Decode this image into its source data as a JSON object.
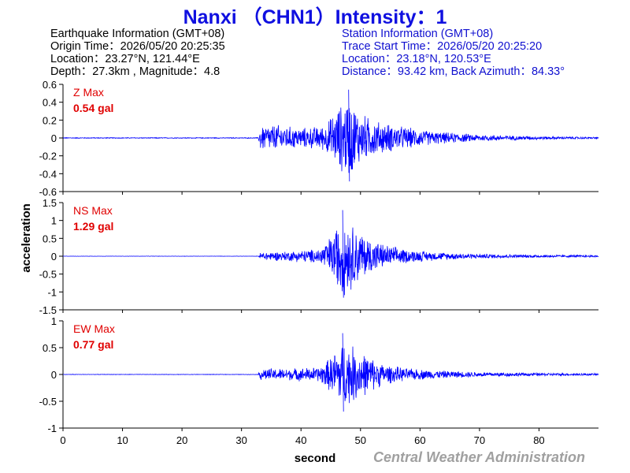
{
  "title": "Nanxi （CHN1）Intensity：1",
  "earthquake_info": {
    "heading": "Earthquake Information  (GMT+08)",
    "origin_time": "Origin Time：2026/05/20 20:25:35",
    "location": "Location：23.27°N, 121.44°E",
    "depth_magnitude": "Depth：27.3km , Magnitude：4.8"
  },
  "station_info": {
    "heading": "Station Information  (GMT+08)",
    "trace_start": "Trace Start Time：2026/05/20 20:25:20",
    "location": "Location：23.18°N, 120.53°E",
    "distance": "Distance：93.42 km, Back Azimuth：84.33°"
  },
  "watermark": "Central Weather Administration",
  "colors": {
    "title": "#1010e0",
    "trace": "#0000ff",
    "label": "#e00000",
    "watermark": "#a0a0a0"
  },
  "chart_data": {
    "type": "line",
    "xlabel": "second",
    "ylabel": "acceleration",
    "xlim": [
      0,
      90
    ],
    "x_ticks": [
      0,
      10,
      20,
      30,
      40,
      50,
      60,
      70,
      80
    ],
    "grid": false,
    "series": [
      {
        "name": "Z",
        "label": "Z Max",
        "max_text": "0.54 gal",
        "peak": 0.54,
        "ylim": [
          -0.6,
          0.6
        ],
        "y_ticks": [
          0.6,
          0.4,
          0.2,
          0,
          -0.2,
          -0.4,
          -0.6
        ],
        "y_tick_labels": [
          "0.6",
          "0.4",
          "0.2",
          "0",
          "-0.2",
          "-0.4",
          "-0.6"
        ],
        "envelope": [
          [
            0,
            0.005
          ],
          [
            32.8,
            0.005
          ],
          [
            33.2,
            0.16
          ],
          [
            36,
            0.16
          ],
          [
            40,
            0.12
          ],
          [
            44,
            0.15
          ],
          [
            46,
            0.35
          ],
          [
            48,
            0.5
          ],
          [
            50,
            0.3
          ],
          [
            53,
            0.2
          ],
          [
            57,
            0.14
          ],
          [
            62,
            0.08
          ],
          [
            70,
            0.04
          ],
          [
            80,
            0.02
          ],
          [
            90,
            0.01
          ]
        ]
      },
      {
        "name": "NS",
        "label": "NS Max",
        "max_text": "1.29 gal",
        "peak": 1.29,
        "ylim": [
          -1.5,
          1.5
        ],
        "y_ticks": [
          1.5,
          1,
          0.5,
          0,
          -0.5,
          -1,
          -1.5
        ],
        "y_tick_labels": [
          "1.5",
          "1",
          "0.5",
          "0",
          "-0.5",
          "-1",
          "-1.5"
        ],
        "envelope": [
          [
            0,
            0.004
          ],
          [
            32.8,
            0.004
          ],
          [
            33.2,
            0.12
          ],
          [
            38,
            0.15
          ],
          [
            43,
            0.22
          ],
          [
            45,
            0.6
          ],
          [
            47,
            1.25
          ],
          [
            49,
            0.9
          ],
          [
            51,
            0.6
          ],
          [
            54,
            0.35
          ],
          [
            58,
            0.2
          ],
          [
            63,
            0.12
          ],
          [
            70,
            0.07
          ],
          [
            80,
            0.04
          ],
          [
            90,
            0.03
          ]
        ]
      },
      {
        "name": "EW",
        "label": "EW Max",
        "max_text": "0.77 gal",
        "peak": 0.77,
        "ylim": [
          -1,
          1
        ],
        "y_ticks": [
          1,
          0.5,
          0,
          -0.5,
          -1
        ],
        "y_tick_labels": [
          "1",
          "0.5",
          "0",
          "-0.5",
          "-1"
        ],
        "envelope": [
          [
            0,
            0.004
          ],
          [
            32.8,
            0.004
          ],
          [
            33.2,
            0.12
          ],
          [
            38,
            0.12
          ],
          [
            43,
            0.15
          ],
          [
            45,
            0.35
          ],
          [
            47,
            0.7
          ],
          [
            49,
            0.55
          ],
          [
            51,
            0.4
          ],
          [
            54,
            0.2
          ],
          [
            58,
            0.12
          ],
          [
            63,
            0.08
          ],
          [
            70,
            0.05
          ],
          [
            80,
            0.03
          ],
          [
            90,
            0.02
          ]
        ]
      }
    ]
  }
}
